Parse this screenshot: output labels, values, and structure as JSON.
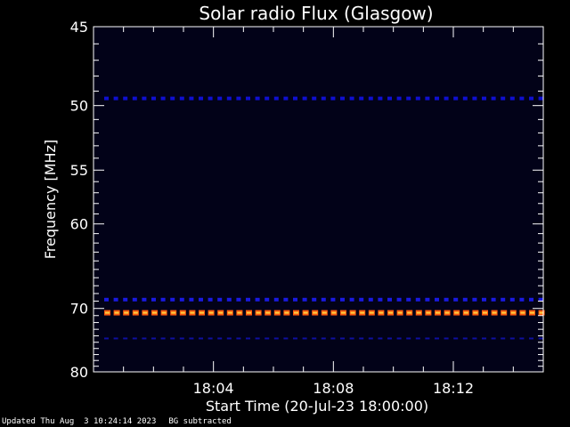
{
  "chart_data": {
    "type": "heatmap",
    "title": "Solar radio Flux (Glasgow)",
    "xlabel": "Start Time (20-Jul-23 18:00:00)",
    "ylabel": "Frequency [MHz]",
    "x_ticks": [
      "18:04",
      "18:08",
      "18:12"
    ],
    "x_tick_minutes": [
      4,
      8,
      12
    ],
    "xlim_minutes": [
      0,
      15
    ],
    "y_ticks": [
      45,
      50,
      55,
      60,
      70,
      80
    ],
    "ylim": [
      45,
      80
    ],
    "y_scale": "reciprocal",
    "background_color": "#020218",
    "emission_bands": [
      {
        "freq_mhz": 49.5,
        "intensity": "medium",
        "color": "#1010d0"
      },
      {
        "freq_mhz": 68.8,
        "intensity": "medium",
        "color": "#1a1ae0"
      },
      {
        "freq_mhz": 70.6,
        "intensity": "high",
        "color": "#ff5a10"
      },
      {
        "freq_mhz": 74.4,
        "intensity": "low",
        "color": "#1010a0"
      }
    ]
  },
  "footer": {
    "updated": "Updated Thu Aug  3 10:24:14 2023",
    "note": "BG subtracted"
  }
}
